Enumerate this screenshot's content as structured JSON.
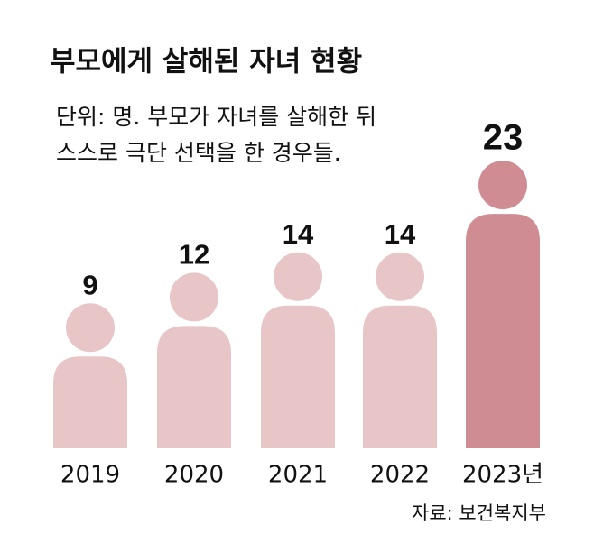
{
  "chart_data": {
    "type": "pictogram-bar",
    "title": "부모에게 살해된 자녀 현황",
    "subtitle": [
      "단위: 명. 부모가 자녀를 살해한 뒤",
      "스스로 극단 선택을 한 경우들."
    ],
    "categories": [
      "2019",
      "2020",
      "2021",
      "2022",
      "2023년"
    ],
    "values": [
      9,
      12,
      14,
      14,
      23
    ],
    "colors": [
      "#e8c5c7",
      "#e8c5c7",
      "#e8c5c7",
      "#e8c5c7",
      "#cf8d93"
    ],
    "source": "자료: 보건복지부"
  }
}
